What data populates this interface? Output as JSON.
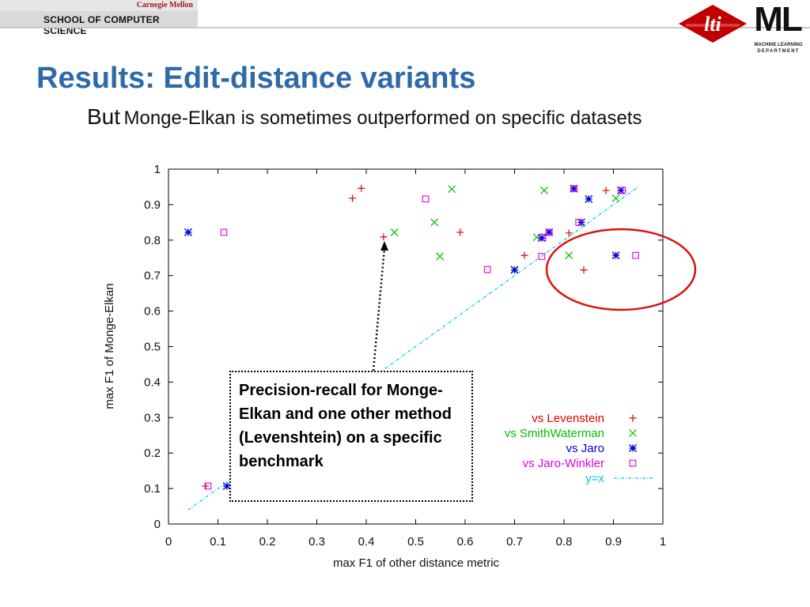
{
  "header": {
    "university": "Carnegie Mellon",
    "school": "SCHOOL OF COMPUTER SCIENCE",
    "lti_logo": "lti",
    "ml_logo": "ML",
    "ml_sub1": "MACHINE LEARNING",
    "ml_sub2": "DEPARTMENT"
  },
  "slide": {
    "title": "Results: Edit-distance variants",
    "subtitle_lead": "But",
    "subtitle_rest": "Monge-Elkan is sometimes outperformed on specific datasets"
  },
  "callout": {
    "text": "Precision-recall for Monge-Elkan and one other method (Levenshtein) on a specific benchmark"
  },
  "colors": {
    "title": "#2e6aa8",
    "levenstein": "#e00000",
    "smithwaterman": "#00c000",
    "jaro": "#0000dd",
    "jarowinkler": "#dd00dd",
    "yx": "#00c8e8",
    "ellipse": "#dd1111"
  },
  "chart_data": {
    "type": "scatter",
    "title": "",
    "xlabel": "max F1 of other distance metric",
    "ylabel": "max F1 of Monge-Elkan",
    "xlim": [
      0,
      1
    ],
    "ylim": [
      0,
      1
    ],
    "xticks": [
      "0",
      "0.1",
      "0.2",
      "0.3",
      "0.4",
      "0.5",
      "0.6",
      "0.7",
      "0.8",
      "0.9",
      "1"
    ],
    "yticks": [
      "0",
      "0.1",
      "0.2",
      "0.3",
      "0.4",
      "0.5",
      "0.6",
      "0.7",
      "0.8",
      "0.9",
      "1"
    ],
    "grid": false,
    "legend_position": "bottom-right",
    "series": [
      {
        "name": "vs Levenstein",
        "color_key": "levenstein",
        "marker": "plus",
        "points": [
          [
            0.075,
            0.107
          ],
          [
            0.372,
            0.918
          ],
          [
            0.39,
            0.946
          ],
          [
            0.435,
            0.809
          ],
          [
            0.59,
            0.822
          ],
          [
            0.72,
            0.757
          ],
          [
            0.81,
            0.82
          ],
          [
            0.84,
            0.716
          ],
          [
            0.885,
            0.94
          ]
        ]
      },
      {
        "name": "vs SmithWaterman",
        "color_key": "smithwaterman",
        "marker": "x",
        "points": [
          [
            0.457,
            0.822
          ],
          [
            0.538,
            0.85
          ],
          [
            0.549,
            0.754
          ],
          [
            0.573,
            0.944
          ],
          [
            0.7,
            0.717
          ],
          [
            0.745,
            0.808
          ],
          [
            0.76,
            0.94
          ],
          [
            0.81,
            0.757
          ],
          [
            0.905,
            0.918
          ]
        ]
      },
      {
        "name": "vs Jaro",
        "color_key": "jaro",
        "marker": "star",
        "points": [
          [
            0.04,
            0.822
          ],
          [
            0.118,
            0.107
          ],
          [
            0.7,
            0.716
          ],
          [
            0.755,
            0.806
          ],
          [
            0.77,
            0.822
          ],
          [
            0.82,
            0.945
          ],
          [
            0.835,
            0.85
          ],
          [
            0.85,
            0.916
          ],
          [
            0.905,
            0.757
          ],
          [
            0.915,
            0.94
          ]
        ]
      },
      {
        "name": "vs Jaro-Winkler",
        "color_key": "jarowinkler",
        "marker": "square",
        "points": [
          [
            0.08,
            0.107
          ],
          [
            0.112,
            0.822
          ],
          [
            0.52,
            0.916
          ],
          [
            0.645,
            0.717
          ],
          [
            0.755,
            0.754
          ],
          [
            0.757,
            0.808
          ],
          [
            0.77,
            0.822
          ],
          [
            0.82,
            0.945
          ],
          [
            0.83,
            0.85
          ],
          [
            0.918,
            0.94
          ],
          [
            0.945,
            0.757
          ]
        ]
      },
      {
        "name": "y=x",
        "color_key": "yx",
        "marker": "line",
        "points": [
          [
            0.04,
            0.04
          ],
          [
            0.95,
            0.95
          ]
        ]
      }
    ]
  }
}
